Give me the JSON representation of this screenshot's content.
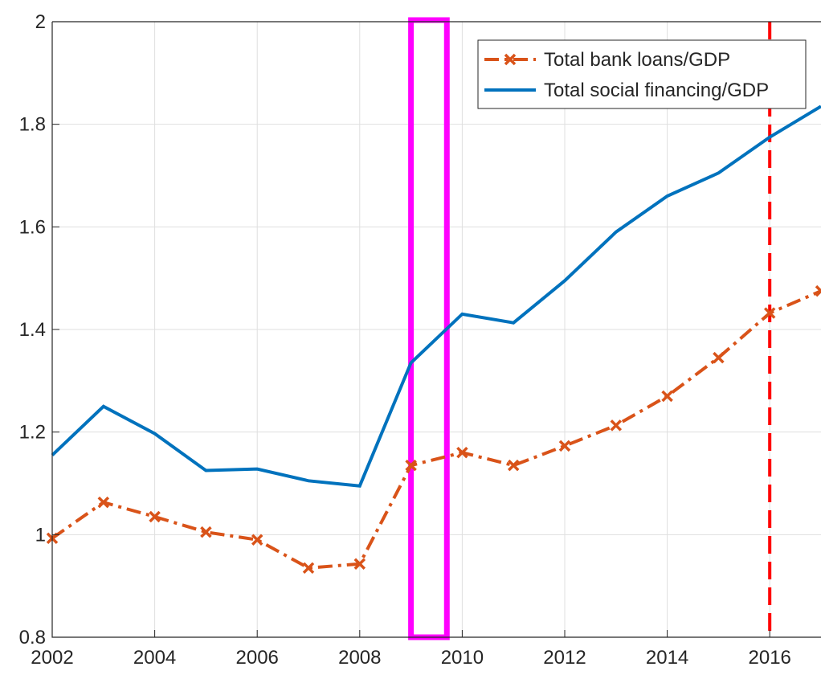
{
  "chart_data": {
    "type": "line",
    "x": [
      2002,
      2003,
      2004,
      2005,
      2006,
      2007,
      2008,
      2009,
      2010,
      2011,
      2012,
      2013,
      2014,
      2015,
      2016,
      2017
    ],
    "series": [
      {
        "name": "Total bank loans/GDP",
        "color": "#d95319",
        "style": "dashdot-x",
        "values": [
          0.993,
          1.063,
          1.035,
          1.005,
          0.99,
          0.935,
          0.943,
          1.135,
          1.16,
          1.135,
          1.173,
          1.213,
          1.27,
          1.345,
          1.432,
          1.475
        ]
      },
      {
        "name": "Total social financing/GDP",
        "color": "#0072bd",
        "style": "solid",
        "values": [
          1.155,
          1.25,
          1.197,
          1.125,
          1.128,
          1.105,
          1.095,
          1.335,
          1.43,
          1.413,
          1.495,
          1.59,
          1.66,
          1.705,
          1.775,
          1.835
        ]
      }
    ],
    "xlim": [
      2002,
      2017
    ],
    "xticks": [
      2002,
      2004,
      2006,
      2008,
      2010,
      2012,
      2014,
      2016
    ],
    "ylim": [
      0.8,
      2
    ],
    "yticks": [
      0.8,
      1,
      1.2,
      1.4,
      1.6,
      1.8,
      2
    ],
    "grid": true,
    "legend": "top-right",
    "highlight_band": {
      "x": [
        2009,
        2009.7
      ],
      "color": "#ff00ff"
    },
    "vline": {
      "x": 2016,
      "color": "#ff0000"
    }
  }
}
